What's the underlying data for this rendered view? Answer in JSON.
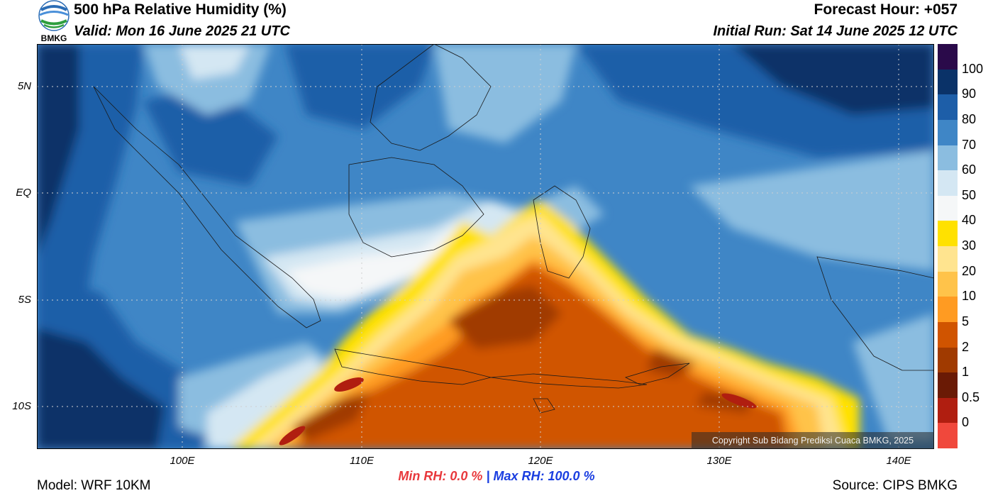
{
  "header": {
    "title": "500 hPa Relative Humidity (%)",
    "valid": "Valid: Mon 16 June 2025 21 UTC",
    "forecast_hour": "Forecast Hour: +057",
    "initial_run": "Initial Run: Sat 14 June 2025 12 UTC"
  },
  "logo": {
    "text": "BMKG"
  },
  "map": {
    "copyright": "Copyright Sub Bidang Prediksi Cuaca BMKG, 2025",
    "lat_labels": [
      "5N",
      "EQ",
      "5S",
      "10S"
    ],
    "lon_labels": [
      "100E",
      "110E",
      "120E",
      "130E",
      "140E"
    ]
  },
  "colorbar": {
    "labels": [
      "100",
      "90",
      "80",
      "70",
      "60",
      "50",
      "40",
      "30",
      "20",
      "10",
      "5",
      "2",
      "1",
      "0.5",
      "0"
    ],
    "colors": [
      "#2a0a4a",
      "#0a3268",
      "#1d5ea8",
      "#3f86c6",
      "#8bbde0",
      "#d4e7f3",
      "#f5f7f8",
      "#ffe100",
      "#ffe48f",
      "#ffc34a",
      "#ff9b22",
      "#d05400",
      "#a03a00",
      "#6a1a05",
      "#b01e10",
      "#f0483c"
    ]
  },
  "footer": {
    "min_rh": "Min RH:   0.0 %",
    "separator": "|",
    "max_rh": "Max RH: 100.0 %",
    "min_color": "#e8383c",
    "max_color": "#1a3ee0",
    "model": "Model: WRF 10KM",
    "source": "Source: CIPS BMKG"
  }
}
